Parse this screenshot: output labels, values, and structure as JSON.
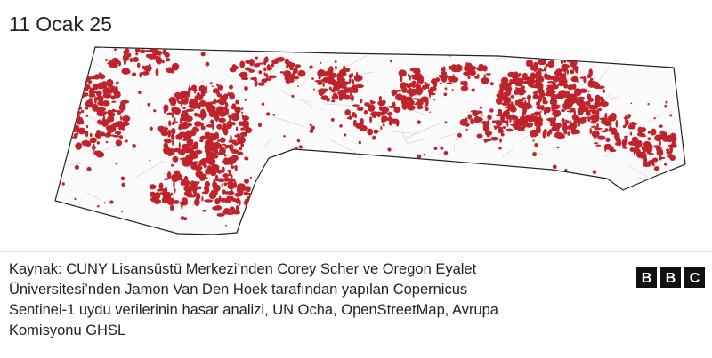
{
  "title": "11 Ocak 25",
  "source": [
    "Kaynak: CUNY Lisansüstü Merkezi’nden Corey Scher ve Oregon Eyalet",
    "Üniversitesi’nden Jamon Van Den Hoek tarafından yapılan Copernicus",
    "Sentinel-1 uydu verilerinin hasar analizi, UN Ocha, OpenStreetMap, Avrupa",
    "Komisyonu GHSL"
  ],
  "logo": [
    "B",
    "B",
    "C"
  ]
}
